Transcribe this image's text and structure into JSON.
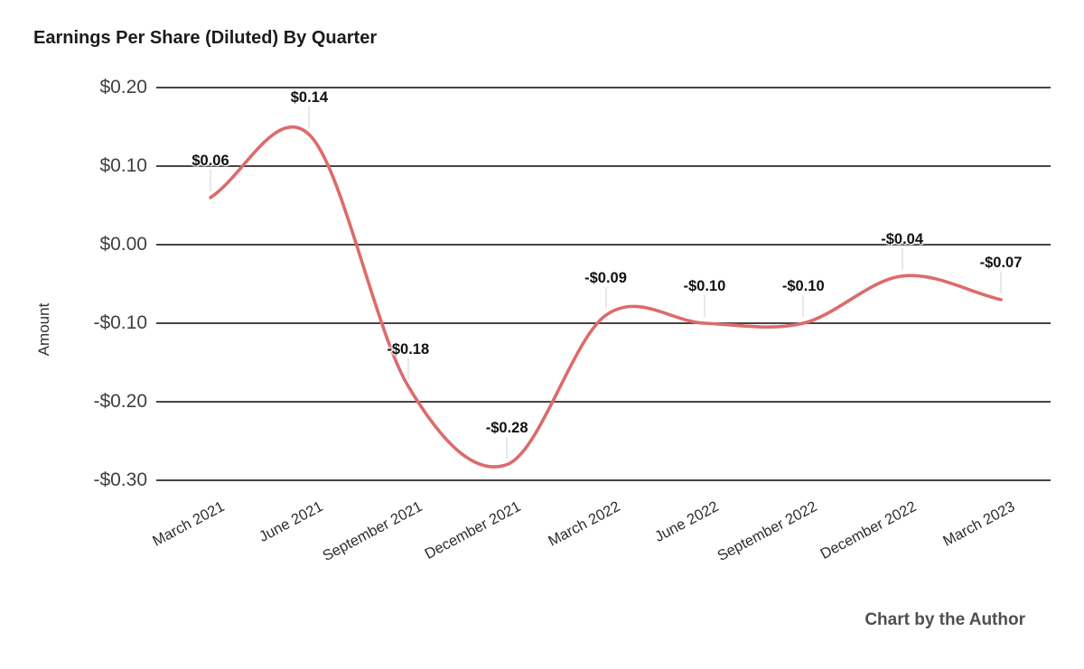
{
  "credit": "Chart by the Author",
  "chart_data": {
    "type": "line",
    "title": "Earnings Per Share (Diluted) By Quarter",
    "ylabel": "Amount",
    "xlabel": "",
    "categories": [
      "March 2021",
      "June 2021",
      "September 2021",
      "December 2021",
      "March 2022",
      "June 2022",
      "September 2022",
      "December 2022",
      "March 2023"
    ],
    "values": [
      0.06,
      0.14,
      -0.18,
      -0.28,
      -0.09,
      -0.1,
      -0.1,
      -0.04,
      -0.07
    ],
    "point_labels": [
      "$0.06",
      "$0.14",
      "-$0.18",
      "-$0.28",
      "-$0.09",
      "-$0.10",
      "-$0.10",
      "-$0.04",
      "-$0.07"
    ],
    "yticks": {
      "values": [
        0.2,
        0.1,
        0.0,
        -0.1,
        -0.2,
        -0.3
      ],
      "labels": [
        "$0.20",
        "$0.10",
        "$0.00",
        "-$0.10",
        "-$0.20",
        "-$0.30"
      ]
    },
    "ylim": [
      -0.3,
      0.2
    ],
    "line_color": "#dd6b6b",
    "grid": true,
    "legend": "none",
    "curve": "smooth"
  }
}
